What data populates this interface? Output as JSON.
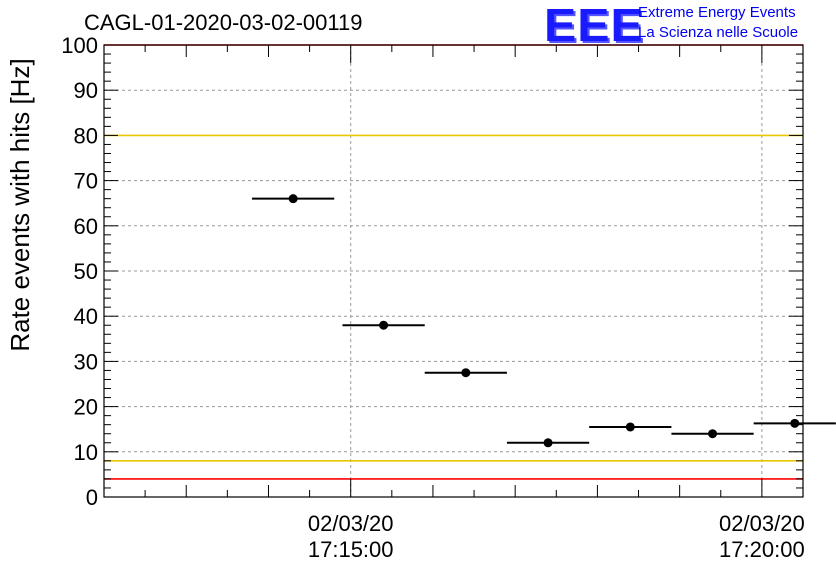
{
  "header": {
    "title": "CAGL-01-2020-03-02-00119",
    "logo_mark": "EEE",
    "logo_line1": "Extreme Energy Events",
    "logo_line2": "La Scienza nelle Scuole"
  },
  "chart_data": {
    "type": "scatter",
    "title": "CAGL-01-2020-03-02-00119",
    "xlabel": "",
    "ylabel": "Rate events with hits [Hz]",
    "ylim": [
      0,
      100
    ],
    "yticks": [
      0,
      10,
      20,
      30,
      40,
      50,
      60,
      70,
      80,
      90,
      100
    ],
    "xlim_minutes": [
      -3,
      5.5
    ],
    "xticks": [
      {
        "t": 0,
        "date": "02/03/20",
        "time": "17:15:00"
      },
      {
        "t": 5,
        "date": "02/03/20",
        "time": "17:20:00"
      }
    ],
    "grid": true,
    "series": [
      {
        "points": [
          {
            "x": -0.7,
            "xerr": 0.5,
            "y": 66
          },
          {
            "x": 0.4,
            "xerr": 0.5,
            "y": 38
          },
          {
            "x": 1.4,
            "xerr": 0.5,
            "y": 27.5
          },
          {
            "x": 2.4,
            "xerr": 0.5,
            "y": 12
          },
          {
            "x": 3.4,
            "xerr": 0.5,
            "y": 15.5
          },
          {
            "x": 4.4,
            "xerr": 0.5,
            "y": 14
          },
          {
            "x": 5.4,
            "xerr": 0.5,
            "y": 16.3
          }
        ]
      }
    ],
    "reference_lines": [
      {
        "y": 100,
        "color": "#ff0000"
      },
      {
        "y": 80,
        "color": "#e8c800"
      },
      {
        "y": 8,
        "color": "#e8c800"
      },
      {
        "y": 4,
        "color": "#ff0000"
      }
    ]
  }
}
